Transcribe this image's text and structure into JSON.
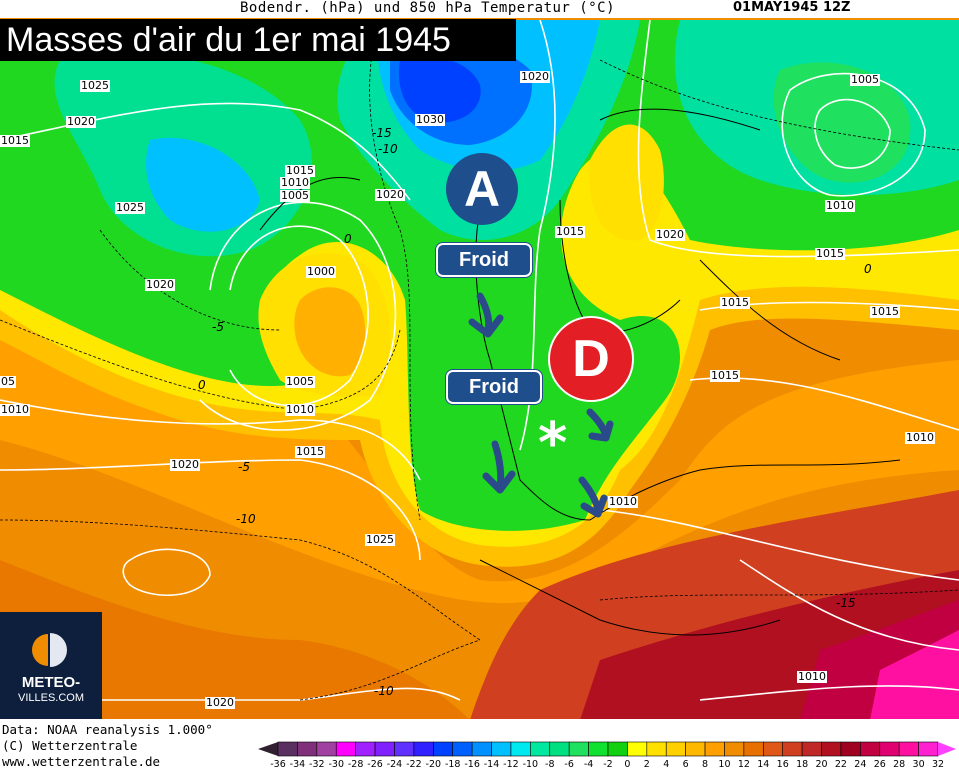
{
  "header": {
    "title": "Bodendr. (hPa) und 850 hPa Temperatur (°C)",
    "date": "01MAY1945 12Z"
  },
  "overlay": {
    "title": "Masses d'air du 1er mai 1945",
    "high_label": "A",
    "low_label": "D",
    "cold_labels": [
      "Froid",
      "Froid"
    ],
    "marker": "*",
    "colors": {
      "box": "#1f4e8c",
      "high": "#1f4e8c",
      "low": "#e31e24",
      "arrow": "#2a4a8a"
    }
  },
  "isobar_labels": [
    "1025",
    "1020",
    "1015",
    "1025",
    "1020",
    "1015",
    "1010",
    "1005",
    "1020",
    "1000",
    "1030",
    "1020",
    "1005",
    "1010",
    "1015",
    "1015",
    "1020",
    "1015",
    "1015",
    "1015",
    "1005",
    "1010",
    "1015",
    "1020",
    "1010",
    "05",
    "1025",
    "1010",
    "1010",
    "1010",
    "1020"
  ],
  "temperature_labels": [
    "-15",
    "-10",
    "0",
    "-5",
    "0",
    "-5",
    "-10",
    "-15",
    "-10",
    "0"
  ],
  "logo": {
    "line1": "METEO-",
    "line2": "VILLES.COM"
  },
  "footer": {
    "data_source": "Data: NOAA reanalysis 1.000°",
    "copyright": "(C) Wetterzentrale",
    "url": "www.wetterzentrale.de"
  },
  "legend": {
    "ticks": [
      "-36",
      "-34",
      "-32",
      "-30",
      "-28",
      "-26",
      "-24",
      "-22",
      "-20",
      "-18",
      "-16",
      "-14",
      "-12",
      "-10",
      "-8",
      "-6",
      "-4",
      "-2",
      "0",
      "2",
      "4",
      "6",
      "8",
      "10",
      "12",
      "14",
      "16",
      "18",
      "20",
      "22",
      "24",
      "26",
      "28",
      "30",
      "32"
    ],
    "colors": [
      "#5a3060",
      "#80307a",
      "#a040a0",
      "#ff00ff",
      "#a020ff",
      "#8020ff",
      "#6030ff",
      "#3020ff",
      "#0040ff",
      "#0060ff",
      "#0090ff",
      "#00c0ff",
      "#00e8f0",
      "#00e8a0",
      "#00e080",
      "#20e060",
      "#10e030",
      "#10d010",
      "#ffff00",
      "#ffe000",
      "#ffd000",
      "#ffb800",
      "#ffa000",
      "#f08c00",
      "#e87000",
      "#e05818",
      "#d04020",
      "#c02828",
      "#b01020",
      "#a00020",
      "#c00040",
      "#e00070",
      "#ff10a0",
      "#ff20d0"
    ],
    "below_color": "#302030",
    "above_color": "#ff40ff"
  }
}
